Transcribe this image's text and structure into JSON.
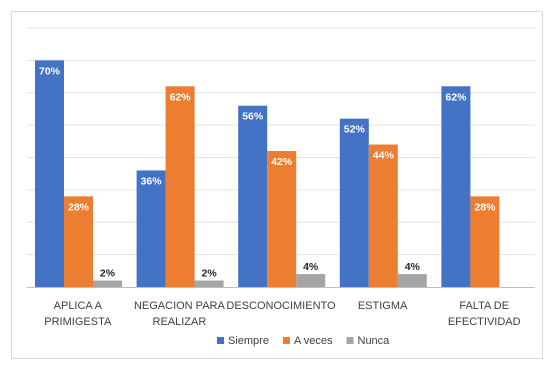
{
  "chart_data": {
    "type": "bar",
    "categories": [
      [
        "APLICA A",
        "PRIMIGESTA"
      ],
      [
        "NEGACION PARA",
        "REALIZAR"
      ],
      [
        "DESCONOCIMIENTO"
      ],
      [
        "ESTIGMA"
      ],
      [
        "FALTA DE",
        "EFECTIVIDAD"
      ]
    ],
    "series": [
      {
        "name": "Siempre",
        "color": "#4472C4",
        "values": [
          70,
          36,
          56,
          52,
          62
        ],
        "labels": [
          "70%",
          "36%",
          "56%",
          "52%",
          "62%"
        ]
      },
      {
        "name": "A veces",
        "color": "#ED7D31",
        "values": [
          28,
          62,
          42,
          44,
          28
        ],
        "labels": [
          "28%",
          "62%",
          "42%",
          "44%",
          "28%"
        ]
      },
      {
        "name": "Nunca",
        "color": "#A5A5A5",
        "values": [
          2,
          2,
          4,
          4,
          null
        ],
        "labels": [
          "2%",
          "2%",
          "4%",
          "4%",
          ""
        ]
      }
    ],
    "ylim": [
      0,
      80
    ],
    "grid": true,
    "legend_position": "bottom",
    "data_labels": true
  }
}
